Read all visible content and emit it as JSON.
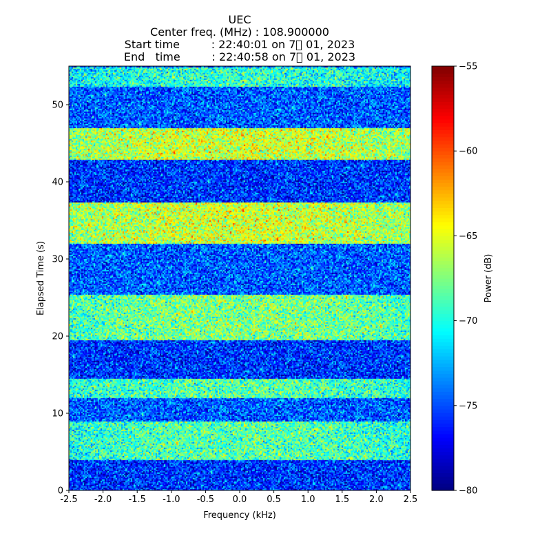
{
  "chart_data": {
    "type": "heatmap",
    "title_lines": [
      "UEC",
      "Center freq. (MHz) : 108.900000",
      "Start time         : 22:40:01 on 7\u0000 01, 2023",
      "End   time         : 22:40:58 on 7\u0000 01, 2023"
    ],
    "xlabel": "Frequency (kHz)",
    "ylabel": "Elapsed Time (s)",
    "colorbar_label": "Power (dB)",
    "xlim": [
      -2.5,
      2.5
    ],
    "ylim": [
      0,
      55
    ],
    "clim": [
      -80,
      -55
    ],
    "xticks": [
      -2.5,
      -2.0,
      -1.5,
      -1.0,
      -0.5,
      0.0,
      0.5,
      1.0,
      1.5,
      2.0,
      2.5
    ],
    "xtick_labels": [
      "-2.5",
      "-2.0",
      "-1.5",
      "-1.0",
      "-0.5",
      "0.0",
      "0.5",
      "1.0",
      "1.5",
      "2.0",
      "2.5"
    ],
    "yticks": [
      0,
      10,
      20,
      30,
      40,
      50
    ],
    "ytick_labels": [
      "0",
      "10",
      "20",
      "30",
      "40",
      "50"
    ],
    "cbar_ticks": [
      -80,
      -75,
      -70,
      -65,
      -60,
      -55
    ],
    "cbar_tick_labels": [
      "−80",
      "−75",
      "−70",
      "−65",
      "−60",
      "−55"
    ],
    "colormap": "jet",
    "bands": [
      {
        "t_start": 0.0,
        "t_end": 4.0,
        "mean_db": -76
      },
      {
        "t_start": 4.0,
        "t_end": 9.0,
        "mean_db": -70
      },
      {
        "t_start": 9.0,
        "t_end": 12.0,
        "mean_db": -75
      },
      {
        "t_start": 12.0,
        "t_end": 14.5,
        "mean_db": -70
      },
      {
        "t_start": 14.5,
        "t_end": 19.5,
        "mean_db": -76
      },
      {
        "t_start": 19.5,
        "t_end": 25.5,
        "mean_db": -69
      },
      {
        "t_start": 25.5,
        "t_end": 32.0,
        "mean_db": -75
      },
      {
        "t_start": 32.0,
        "t_end": 37.5,
        "mean_db": -67
      },
      {
        "t_start": 37.5,
        "t_end": 43.0,
        "mean_db": -76
      },
      {
        "t_start": 43.0,
        "t_end": 47.0,
        "mean_db": -67
      },
      {
        "t_start": 47.0,
        "t_end": 52.5,
        "mean_db": -75
      },
      {
        "t_start": 52.5,
        "t_end": 55.0,
        "mean_db": -71
      }
    ]
  }
}
